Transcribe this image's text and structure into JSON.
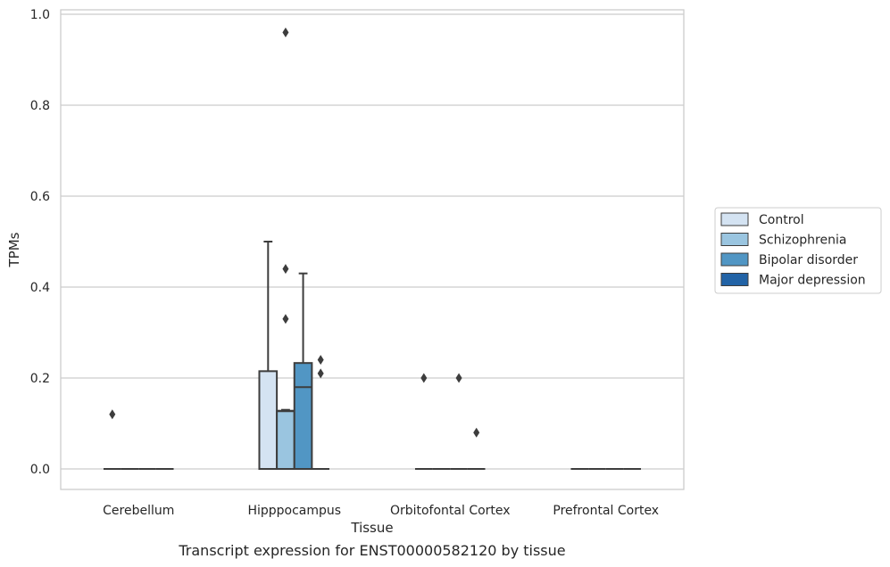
{
  "chart_data": {
    "type": "box",
    "xlabel": "Tissue",
    "ylabel": "TPMs",
    "caption": "Transcript expression for ENST00000582120 by tissue",
    "ylim": [
      -0.045,
      1.01
    ],
    "yticks": [
      0.0,
      0.2,
      0.4,
      0.6,
      0.8,
      1.0
    ],
    "ytick_labels": [
      "0.0",
      "0.2",
      "0.4",
      "0.6",
      "0.8",
      "1.0"
    ],
    "grid": "horizontal",
    "legend_position": "right",
    "categories": [
      "Cerebellum",
      "Hipppocampus",
      "Orbitofontal Cortex",
      "Prefrontal Cortex"
    ],
    "series": [
      {
        "name": "Control",
        "color": "#d4e3f2",
        "boxes": [
          {
            "category": "Cerebellum",
            "q1": 0,
            "median": 0,
            "q3": 0,
            "whisker_low": 0,
            "whisker_high": 0,
            "outliers": [
              0.12
            ]
          },
          {
            "category": "Hipppocampus",
            "q1": 0,
            "median": 0,
            "q3": 0.215,
            "whisker_low": 0,
            "whisker_high": 0.5,
            "outliers": []
          },
          {
            "category": "Orbitofontal Cortex",
            "q1": 0,
            "median": 0,
            "q3": 0,
            "whisker_low": 0,
            "whisker_high": 0,
            "outliers": [
              0.2
            ]
          },
          {
            "category": "Prefrontal Cortex",
            "q1": 0,
            "median": 0,
            "q3": 0,
            "whisker_low": 0,
            "whisker_high": 0,
            "outliers": []
          }
        ]
      },
      {
        "name": "Schizophrenia",
        "color": "#9ac5e0",
        "boxes": [
          {
            "category": "Cerebellum",
            "q1": 0,
            "median": 0,
            "q3": 0,
            "whisker_low": 0,
            "whisker_high": 0,
            "outliers": []
          },
          {
            "category": "Hipppocampus",
            "q1": 0,
            "median": 0.127,
            "q3": 0.128,
            "whisker_low": 0,
            "whisker_high": 0.13,
            "outliers": [
              0.96,
              0.44,
              0.33
            ]
          },
          {
            "category": "Orbitofontal Cortex",
            "q1": 0,
            "median": 0,
            "q3": 0,
            "whisker_low": 0,
            "whisker_high": 0,
            "outliers": []
          },
          {
            "category": "Prefrontal Cortex",
            "q1": 0,
            "median": 0,
            "q3": 0,
            "whisker_low": 0,
            "whisker_high": 0,
            "outliers": []
          }
        ]
      },
      {
        "name": "Bipolar disorder",
        "color": "#5196c4",
        "boxes": [
          {
            "category": "Cerebellum",
            "q1": 0,
            "median": 0,
            "q3": 0,
            "whisker_low": 0,
            "whisker_high": 0,
            "outliers": []
          },
          {
            "category": "Hipppocampus",
            "q1": 0,
            "median": 0.18,
            "q3": 0.233,
            "whisker_low": 0,
            "whisker_high": 0.43,
            "outliers": []
          },
          {
            "category": "Orbitofontal Cortex",
            "q1": 0,
            "median": 0,
            "q3": 0,
            "whisker_low": 0,
            "whisker_high": 0,
            "outliers": [
              0.2
            ]
          },
          {
            "category": "Prefrontal Cortex",
            "q1": 0,
            "median": 0,
            "q3": 0,
            "whisker_low": 0,
            "whisker_high": 0,
            "outliers": []
          }
        ]
      },
      {
        "name": "Major depression",
        "color": "#2263a6",
        "boxes": [
          {
            "category": "Cerebellum",
            "q1": 0,
            "median": 0,
            "q3": 0,
            "whisker_low": 0,
            "whisker_high": 0,
            "outliers": []
          },
          {
            "category": "Hipppocampus",
            "q1": 0,
            "median": 0,
            "q3": 0,
            "whisker_low": 0,
            "whisker_high": 0,
            "outliers": [
              0.24,
              0.21
            ]
          },
          {
            "category": "Orbitofontal Cortex",
            "q1": 0,
            "median": 0,
            "q3": 0,
            "whisker_low": 0,
            "whisker_high": 0,
            "outliers": [
              0.08
            ]
          },
          {
            "category": "Prefrontal Cortex",
            "q1": 0,
            "median": 0,
            "q3": 0,
            "whisker_low": 0,
            "whisker_high": 0,
            "outliers": []
          }
        ]
      }
    ]
  }
}
